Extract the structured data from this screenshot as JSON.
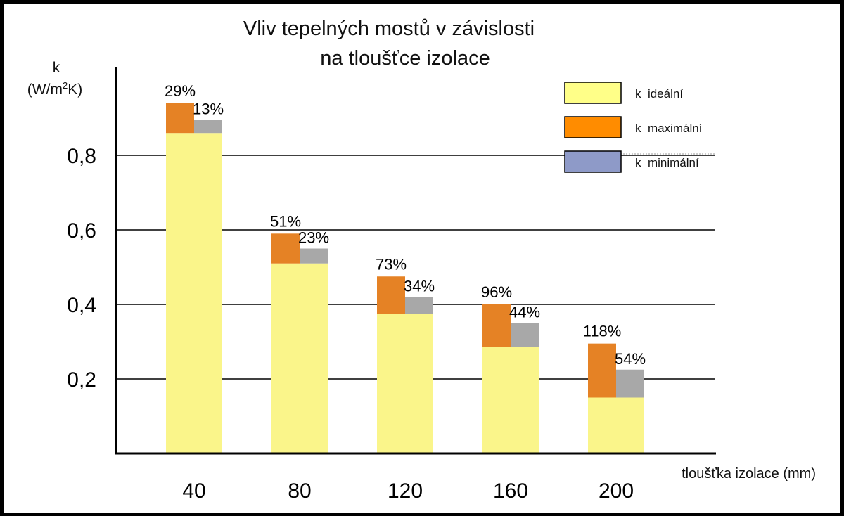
{
  "colors": {
    "ideal": "#FAF58A",
    "max": "#E58225",
    "min": "#A8A8A8",
    "legend_ideal": "#FFFF88",
    "legend_max": "#FF8C00",
    "legend_min": "#8E9AC8",
    "grid": "#000000"
  },
  "chart_data": {
    "type": "bar",
    "title_line1": "Vliv tepelných mostů v závislosti",
    "title_line2": "na  tloušťce izolace",
    "ylabel_k": "k",
    "ylabel_unit_a": "(W/m",
    "ylabel_unit_sup": "2",
    "ylabel_unit_b": "K)",
    "xlabel": "tloušťka izolace (mm)",
    "ylim": [
      0,
      1.0
    ],
    "yticks": [
      {
        "value": 0.2,
        "label": "0,2"
      },
      {
        "value": 0.4,
        "label": "0,4"
      },
      {
        "value": 0.6,
        "label": "0,6"
      },
      {
        "value": 0.8,
        "label": "0,8"
      }
    ],
    "categories": [
      "40",
      "80",
      "120",
      "160",
      "200"
    ],
    "series": [
      {
        "name": "k  ideální",
        "values": [
          0.86,
          0.51,
          0.375,
          0.285,
          0.15
        ]
      },
      {
        "name": "k  maximální",
        "values": [
          0.94,
          0.59,
          0.475,
          0.4,
          0.295
        ]
      },
      {
        "name": "k  minimální",
        "values": [
          0.895,
          0.55,
          0.42,
          0.35,
          0.225
        ]
      }
    ],
    "max_labels": [
      "29%",
      "51%",
      "73%",
      "96%",
      "118%"
    ],
    "min_labels": [
      "13%",
      "23%",
      "34%",
      "44%",
      "54%"
    ],
    "legend_position": "top-right"
  }
}
